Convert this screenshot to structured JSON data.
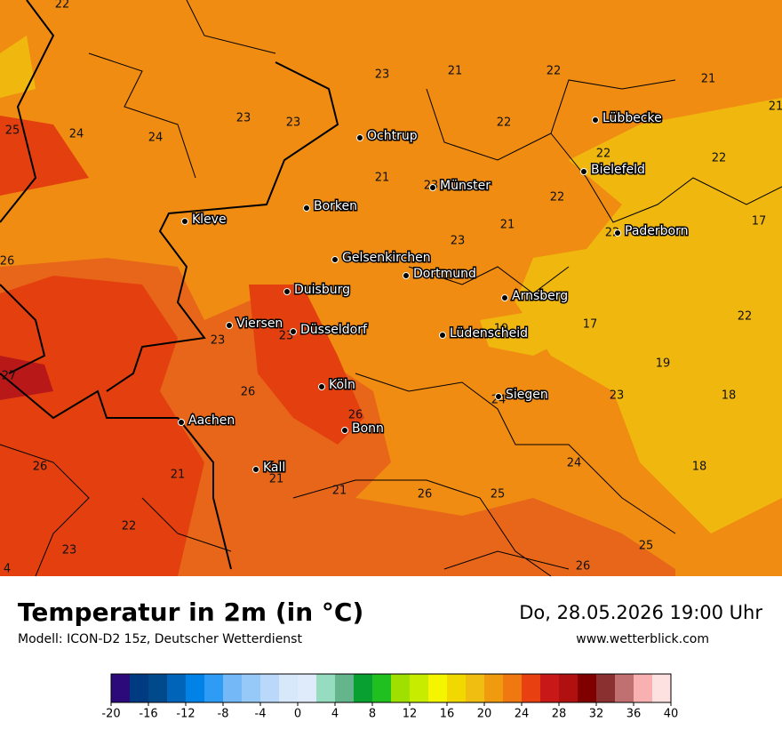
{
  "header": {
    "title": "Temperatur in 2m (in °C)",
    "model": "Modell: ICON-D2 15z, Deutscher Wetterdienst",
    "datetime": "Do, 28.05.2026 19:00 Uhr",
    "website": "www.wetterblick.com"
  },
  "map_values": [
    22,
    23,
    21,
    22,
    21,
    21,
    25,
    24,
    24,
    23,
    23,
    22,
    21,
    22,
    22,
    21,
    23,
    22,
    21,
    23,
    22,
    17,
    26,
    22,
    19,
    17,
    23,
    23,
    19,
    27,
    26,
    24,
    23,
    18,
    26,
    26,
    21,
    21,
    21,
    26,
    25,
    24,
    18,
    22,
    23,
    25,
    26,
    4
  ],
  "cities": [
    "Ochtrup",
    "Lübbecke",
    "Bielefeld",
    "Münster",
    "Borken",
    "Kleve",
    "Paderborn",
    "Gelsenkirchen",
    "Dortmund",
    "Duisburg",
    "Arnsberg",
    "Viersen",
    "Düsseldorf",
    "Lüdenscheid",
    "Köln",
    "Siegen",
    "Aachen",
    "Bonn",
    "Kall"
  ],
  "legend": {
    "ticks": [
      -20,
      -16,
      -12,
      -8,
      -4,
      0,
      4,
      8,
      12,
      16,
      20,
      24,
      28,
      32,
      36,
      40
    ],
    "colors": [
      "#2c0a7a",
      "#003a80",
      "#004a8c",
      "#0064b8",
      "#0082e6",
      "#2e9bf5",
      "#74b8f8",
      "#96c8f8",
      "#bad8fa",
      "#d8e8fb",
      "#dfeafb",
      "#95dcc0",
      "#64b48c",
      "#08a030",
      "#20c020",
      "#a0e000",
      "#c8ec00",
      "#f5f500",
      "#f0d800",
      "#f0be10",
      "#f09a10",
      "#f07810",
      "#e84010",
      "#c81818",
      "#b01010",
      "#800000",
      "#8a3030",
      "#c07070",
      "#f8b0b0",
      "#fde0e0"
    ]
  }
}
